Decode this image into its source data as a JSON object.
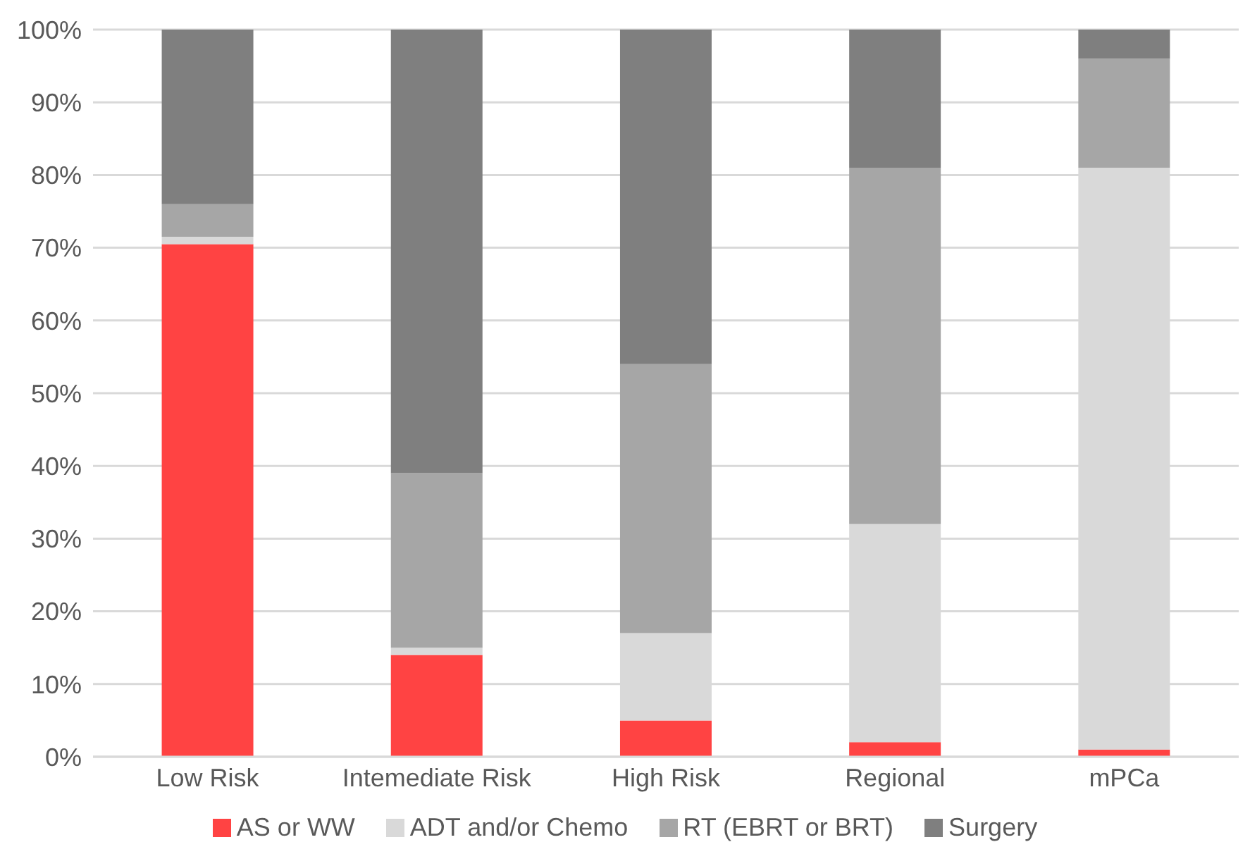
{
  "chart_data": {
    "type": "bar",
    "stacked": true,
    "categories": [
      "Low Risk",
      "Intemediate Risk",
      "High Risk",
      "Regional",
      "mPCa"
    ],
    "series": [
      {
        "name": "AS or WW",
        "color": "#ff4343",
        "values": [
          70.5,
          14,
          5,
          2,
          1
        ]
      },
      {
        "name": "ADT and/or Chemo",
        "color": "#d9d9d9",
        "values": [
          1,
          1,
          12,
          30,
          80
        ]
      },
      {
        "name": "RT (EBRT or BRT)",
        "color": "#a6a6a6",
        "values": [
          4.5,
          24,
          37,
          49,
          15
        ]
      },
      {
        "name": "Surgery",
        "color": "#7f7f7f",
        "values": [
          24,
          61,
          46,
          19,
          4
        ]
      }
    ],
    "ylim": [
      0,
      100
    ],
    "yticks": [
      {
        "value": 0,
        "label": "0%"
      },
      {
        "value": 10,
        "label": "10%"
      },
      {
        "value": 20,
        "label": "20%"
      },
      {
        "value": 30,
        "label": "30%"
      },
      {
        "value": 40,
        "label": "40%"
      },
      {
        "value": 50,
        "label": "50%"
      },
      {
        "value": 60,
        "label": "60%"
      },
      {
        "value": 70,
        "label": "70%"
      },
      {
        "value": 80,
        "label": "80%"
      },
      {
        "value": 90,
        "label": "90%"
      },
      {
        "value": 100,
        "label": "100%"
      }
    ],
    "grid": "y",
    "legend": "bottom"
  }
}
